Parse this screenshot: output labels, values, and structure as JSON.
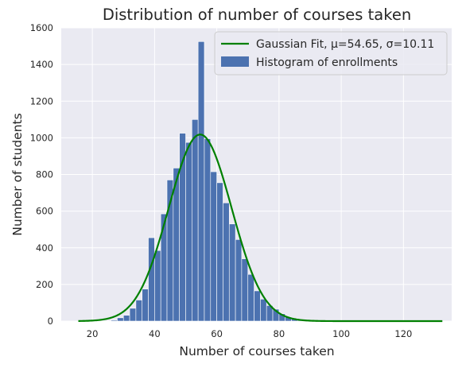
{
  "chart_data": {
    "type": "bar",
    "title": "Distribution of number of courses taken",
    "xlabel": "Number of courses taken",
    "ylabel": "Number of students",
    "xlim": [
      10,
      135.5
    ],
    "ylim": [
      0,
      1600
    ],
    "xticks": [
      20,
      40,
      60,
      80,
      100,
      120
    ],
    "yticks": [
      0,
      200,
      400,
      600,
      800,
      1000,
      1200,
      1400,
      1600
    ],
    "grid": true,
    "legend_position": "top-right",
    "series": [
      {
        "name": "Histogram of enrollments",
        "kind": "histogram",
        "color": "#4c72b0",
        "bin_width": 2,
        "bins": [
          {
            "x0": 26,
            "x1": 28,
            "count": 5
          },
          {
            "x0": 28,
            "x1": 30,
            "count": 18
          },
          {
            "x0": 30,
            "x1": 32,
            "count": 32
          },
          {
            "x0": 32,
            "x1": 34,
            "count": 70
          },
          {
            "x0": 34,
            "x1": 36,
            "count": 115
          },
          {
            "x0": 36,
            "x1": 38,
            "count": 175
          },
          {
            "x0": 38,
            "x1": 40,
            "count": 455
          },
          {
            "x0": 40,
            "x1": 42,
            "count": 385
          },
          {
            "x0": 42,
            "x1": 44,
            "count": 585
          },
          {
            "x0": 44,
            "x1": 46,
            "count": 770
          },
          {
            "x0": 46,
            "x1": 48,
            "count": 835
          },
          {
            "x0": 48,
            "x1": 50,
            "count": 1025
          },
          {
            "x0": 50,
            "x1": 52,
            "count": 975
          },
          {
            "x0": 52,
            "x1": 54,
            "count": 1100
          },
          {
            "x0": 54,
            "x1": 56,
            "count": 1525
          },
          {
            "x0": 56,
            "x1": 58,
            "count": 995
          },
          {
            "x0": 58,
            "x1": 60,
            "count": 815
          },
          {
            "x0": 60,
            "x1": 62,
            "count": 755
          },
          {
            "x0": 62,
            "x1": 64,
            "count": 645
          },
          {
            "x0": 64,
            "x1": 66,
            "count": 530
          },
          {
            "x0": 66,
            "x1": 68,
            "count": 445
          },
          {
            "x0": 68,
            "x1": 70,
            "count": 340
          },
          {
            "x0": 70,
            "x1": 72,
            "count": 255
          },
          {
            "x0": 72,
            "x1": 74,
            "count": 165
          },
          {
            "x0": 74,
            "x1": 76,
            "count": 120
          },
          {
            "x0": 76,
            "x1": 78,
            "count": 85
          },
          {
            "x0": 78,
            "x1": 80,
            "count": 65
          },
          {
            "x0": 80,
            "x1": 82,
            "count": 40
          },
          {
            "x0": 82,
            "x1": 84,
            "count": 22
          },
          {
            "x0": 84,
            "x1": 86,
            "count": 14
          },
          {
            "x0": 86,
            "x1": 88,
            "count": 8
          },
          {
            "x0": 88,
            "x1": 90,
            "count": 4
          },
          {
            "x0": 90,
            "x1": 92,
            "count": 3
          },
          {
            "x0": 92,
            "x1": 94,
            "count": 2
          },
          {
            "x0": 94,
            "x1": 96,
            "count": 1
          }
        ]
      },
      {
        "name": "Gaussian Fit, μ=54.65, σ=10.11",
        "kind": "line",
        "color": "#008000",
        "mu": 54.65,
        "sigma": 10.11,
        "peak": 1018,
        "x_range": [
          15.5,
          132.5
        ]
      }
    ]
  }
}
